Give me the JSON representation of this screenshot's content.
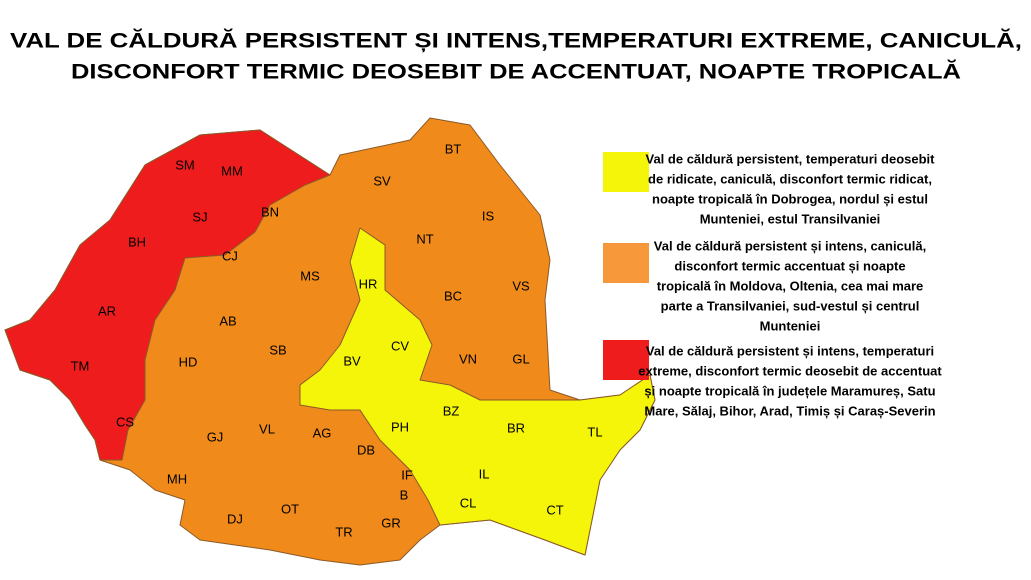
{
  "title": {
    "lines": [
      "VAL DE CĂLDURĂ PERSISTENT ȘI INTENS,TEMPERATURI EXTREME, CANICULĂ,",
      "DISCONFORT TERMIC DEOSEBIT DE ACCENTUAT, NOAPTE TROPICALĂ"
    ]
  },
  "map": {
    "counties": [
      "SM",
      "MM",
      "SJ",
      "BH",
      "AR",
      "TM",
      "CS",
      "BN",
      "CJ",
      "MS",
      "AB",
      "HD",
      "SB",
      "HR",
      "CV",
      "BV",
      "SV",
      "BT",
      "IS",
      "NT",
      "BC",
      "VS",
      "VN",
      "GL",
      "PH",
      "BZ",
      "BR",
      "TL",
      "GJ",
      "VL",
      "AG",
      "DB",
      "MH",
      "IF",
      "B",
      "IL",
      "CL",
      "CT",
      "DJ",
      "OT",
      "TR",
      "GR"
    ]
  },
  "legend": {
    "items": [
      {
        "lines": [
          "Val de căldură persistent, temperaturi deosebit",
          "de ridicate, caniculă, disconfort termic ridicat,",
          "noapte tropicală în Dobrogea, nordul și estul",
          "Munteniei, estul Transilvaniei"
        ]
      },
      {
        "lines": [
          "Val de căldură persistent și intens, caniculă,",
          "disconfort termic accentuat și noapte",
          "tropicală în Moldova, Oltenia, cea mai mare",
          "parte a Transilvaniei, sud-vestul și centrul",
          "Munteniei"
        ]
      },
      {
        "lines": [
          "Val de căldură persistent și intens, temperaturi",
          "extreme, disconfort termic deosebit de accentuat",
          "și noapte tropicală în județele Maramureș, Satu",
          "Mare, Sălaj, Bihor, Arad, Timiș și Caraș-Severin"
        ]
      }
    ]
  }
}
